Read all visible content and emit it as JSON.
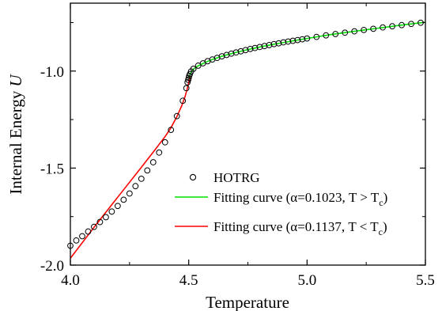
{
  "chart_data": {
    "type": "scatter",
    "xlabel": "Temperature",
    "ylabel_main": "Internal Energy ",
    "ylabel_var": "U",
    "xlim": [
      4.0,
      5.5
    ],
    "ylim": [
      -2.0,
      -0.65
    ],
    "xticks": [
      4.0,
      4.5,
      5.0,
      5.5
    ],
    "xtick_labels": [
      "4.0",
      "4.5",
      "5.0",
      "5.5"
    ],
    "yticks": [
      -2.0,
      -1.5,
      -1.0
    ],
    "ytick_labels": [
      "-2.0",
      "-1.5",
      "-1.0"
    ],
    "legend_position": "lower-right",
    "series": [
      {
        "name": "HOTRG",
        "kind": "scatter",
        "marker": "open-circle",
        "color": "#000000",
        "x": [
          4.0,
          4.025,
          4.05,
          4.075,
          4.1,
          4.125,
          4.15,
          4.175,
          4.2,
          4.225,
          4.25,
          4.275,
          4.3,
          4.325,
          4.35,
          4.375,
          4.4,
          4.425,
          4.45,
          4.475,
          4.49,
          4.495,
          4.498,
          4.5,
          4.502,
          4.505,
          4.51,
          4.52,
          4.54,
          4.56,
          4.58,
          4.6,
          4.62,
          4.64,
          4.66,
          4.68,
          4.7,
          4.72,
          4.74,
          4.76,
          4.78,
          4.8,
          4.82,
          4.84,
          4.86,
          4.88,
          4.9,
          4.92,
          4.94,
          4.96,
          4.98,
          5.0,
          5.04,
          5.08,
          5.12,
          5.16,
          5.2,
          5.24,
          5.28,
          5.32,
          5.36,
          5.4,
          5.44,
          5.48
        ],
        "y": [
          -1.9,
          -1.873,
          -1.851,
          -1.827,
          -1.803,
          -1.778,
          -1.753,
          -1.724,
          -1.695,
          -1.663,
          -1.631,
          -1.593,
          -1.555,
          -1.512,
          -1.47,
          -1.42,
          -1.367,
          -1.303,
          -1.232,
          -1.153,
          -1.088,
          -1.058,
          -1.045,
          -1.035,
          -1.025,
          -1.015,
          -1.002,
          -0.988,
          -0.972,
          -0.96,
          -0.949,
          -0.94,
          -0.932,
          -0.924,
          -0.917,
          -0.91,
          -0.904,
          -0.898,
          -0.892,
          -0.886,
          -0.881,
          -0.876,
          -0.871,
          -0.866,
          -0.861,
          -0.857,
          -0.852,
          -0.848,
          -0.844,
          -0.84,
          -0.836,
          -0.832,
          -0.824,
          -0.816,
          -0.809,
          -0.802,
          -0.795,
          -0.788,
          -0.782,
          -0.775,
          -0.769,
          -0.763,
          -0.757,
          -0.751
        ]
      },
      {
        "name": "Fitting curve (α=0.1023, T > T",
        "name_sub": "c",
        "name_end": ")",
        "kind": "line",
        "color": "#00e000",
        "x": [
          4.5,
          4.51,
          4.52,
          4.54,
          4.56,
          4.58,
          4.6,
          4.65,
          4.7,
          4.75,
          4.8,
          4.85,
          4.9,
          4.95,
          5.0,
          5.1,
          5.2,
          5.3,
          5.4,
          5.5
        ],
        "y": [
          -1.04,
          -1.005,
          -0.99,
          -0.973,
          -0.961,
          -0.95,
          -0.94,
          -0.92,
          -0.904,
          -0.889,
          -0.876,
          -0.864,
          -0.853,
          -0.842,
          -0.832,
          -0.812,
          -0.795,
          -0.779,
          -0.763,
          -0.748
        ]
      },
      {
        "name": "Fitting curve (α=0.1137, T < T",
        "name_sub": "c",
        "name_end": ")",
        "kind": "line",
        "color": "#ff0000",
        "x": [
          4.0,
          4.1,
          4.2,
          4.25,
          4.3,
          4.35,
          4.4,
          4.425,
          4.45,
          4.47,
          4.485,
          4.495,
          4.5,
          4.505
        ],
        "y": [
          -1.965,
          -1.805,
          -1.65,
          -1.573,
          -1.496,
          -1.418,
          -1.338,
          -1.292,
          -1.235,
          -1.18,
          -1.13,
          -1.085,
          -1.06,
          -1.03
        ]
      }
    ]
  }
}
